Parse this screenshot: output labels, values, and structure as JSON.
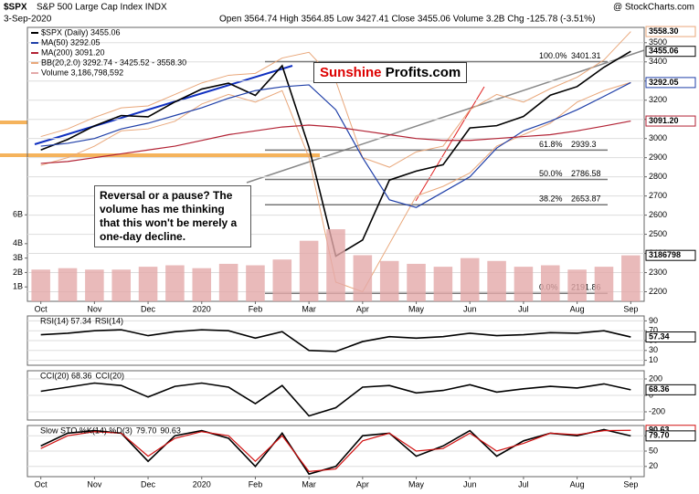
{
  "header": {
    "symbol": "$SPX",
    "name": "S&P 500 Large Cap Index INDX",
    "date": "3-Sep-2020",
    "quote": "Open 3564.74 High 3564.85 Low 3427.41 Close 3455.06 Volume 3.2B Chg -125.78 (-3.51%)",
    "source": "@ StockCharts.com"
  },
  "annotation": "Reversal or a pause? The volume has me thinking that this won't be merely a one-day decline.",
  "logo": [
    "Sunshine",
    "Profits.com"
  ],
  "chart_data": [
    {
      "type": "line",
      "categories": [
        "Oct",
        null,
        "Nov",
        null,
        "Dec",
        null,
        "2020",
        null,
        "Feb",
        null,
        "Mar",
        null,
        "Apr",
        null,
        "May",
        null,
        "Jun",
        null,
        "Jul",
        null,
        "Aug",
        null,
        "Sep"
      ],
      "series": [
        {
          "name": "$SPX (Daily) 3455.06",
          "color": "#000000",
          "values": [
            2940,
            2995,
            3066,
            3120,
            3113,
            3191,
            3258,
            3289,
            3225,
            3380,
            2954,
            2386,
            2470,
            2783,
            2830,
            2863,
            3055,
            3067,
            3115,
            3226,
            3271,
            3372,
            3455.06
          ]
        },
        {
          "name": "MA(50) 3292.05",
          "color": "#1f3fa8",
          "values": [
            2960,
            2975,
            3000,
            3050,
            3080,
            3120,
            3160,
            3210,
            3250,
            3270,
            3280,
            3150,
            2900,
            2680,
            2640,
            2720,
            2800,
            2950,
            3040,
            3090,
            3150,
            3220,
            3292.05
          ]
        },
        {
          "name": "MA(200) 3091.20",
          "color": "#b22234",
          "values": [
            2870,
            2880,
            2900,
            2920,
            2940,
            2960,
            2990,
            3020,
            3040,
            3060,
            3070,
            3060,
            3040,
            3020,
            3000,
            2990,
            2990,
            3000,
            3010,
            3020,
            3040,
            3065,
            3091.2
          ]
        },
        {
          "name": "Volume 3,186,798,592",
          "color": "#e3a9a9",
          "type": "bar",
          "axis": "y2",
          "values": [
            2.2,
            2.3,
            2.2,
            2.2,
            2.4,
            2.5,
            2.3,
            2.6,
            2.5,
            2.9,
            4.2,
            5.0,
            3.2,
            2.8,
            2.6,
            2.4,
            3.0,
            2.8,
            2.4,
            2.5,
            2.2,
            2.4,
            3.19
          ]
        }
      ],
      "bands": {
        "name": "BB(20,2.0) 3292.74 - 3425.52 - 3558.30",
        "color": "#e9a77a",
        "upper": [
          3010,
          3050,
          3110,
          3160,
          3170,
          3230,
          3290,
          3330,
          3340,
          3420,
          3450,
          3300,
          2900,
          2850,
          2930,
          2960,
          3150,
          3230,
          3190,
          3260,
          3320,
          3410,
          3558.3
        ],
        "lower": [
          2860,
          2900,
          2960,
          3040,
          3050,
          3090,
          3180,
          3230,
          3190,
          3250,
          2900,
          2250,
          2200,
          2450,
          2700,
          2750,
          2820,
          2960,
          3020,
          3080,
          3190,
          3250,
          3292.74
        ]
      },
      "fib_levels": [
        {
          "label": "100.0%",
          "value": 3401.31
        },
        {
          "label": "61.8%",
          "value": 2939.3
        },
        {
          "label": "50.0%",
          "value": 2786.58
        },
        {
          "label": "38.2%",
          "value": 2653.87
        },
        {
          "label": "0.0%",
          "value": 2191.86
        }
      ],
      "ylim": [
        2150,
        3580
      ],
      "yticks": [
        2200,
        2300,
        2400,
        2500,
        2600,
        2700,
        2800,
        2900,
        3000,
        3100,
        3200,
        3300,
        3400,
        3500
      ],
      "ymarkers": [
        {
          "value": 3558.3,
          "label": "3558.30",
          "color": "#e9a77a"
        },
        {
          "value": 3455.06,
          "label": "3455.06",
          "color": "#000000"
        },
        {
          "value": 3292.05,
          "label": "3292.05",
          "color": "#1f3fa8"
        },
        {
          "value": 3091.2,
          "label": "3091.20",
          "color": "#b22234"
        }
      ],
      "y2lim": [
        0,
        19
      ],
      "y2ticks": [
        {
          "value": 1,
          "label": "1B"
        },
        {
          "value": 2,
          "label": "2B"
        },
        {
          "value": 3,
          "label": "3B"
        },
        {
          "value": 4,
          "label": "4B"
        },
        {
          "value": 6,
          "label": "6B"
        }
      ],
      "y2markers": [
        {
          "value": 3.186798,
          "label": "3186798",
          "color": "#000000"
        }
      ],
      "grid": true
    },
    {
      "type": "line",
      "title": "RSI(14) 57.34",
      "series": [
        {
          "name": "RSI(14)",
          "color": "#000000",
          "values": [
            62,
            65,
            70,
            72,
            60,
            68,
            72,
            70,
            55,
            68,
            30,
            28,
            48,
            58,
            55,
            58,
            65,
            60,
            62,
            66,
            65,
            70,
            57.34
          ]
        }
      ],
      "ylim": [
        0,
        100
      ],
      "yticks": [
        10,
        30,
        50,
        70,
        90
      ],
      "ymarkers": [
        {
          "value": 57.34,
          "label": "57.34",
          "color": "#000000"
        }
      ],
      "grid": true
    },
    {
      "type": "line",
      "title": "CCI(20) 68.36",
      "series": [
        {
          "name": "CCI(20)",
          "color": "#000000",
          "values": [
            50,
            100,
            150,
            120,
            -20,
            110,
            150,
            100,
            -100,
            120,
            -250,
            -150,
            100,
            120,
            30,
            60,
            130,
            40,
            80,
            110,
            90,
            140,
            68.36
          ]
        }
      ],
      "ylim": [
        -300,
        300
      ],
      "yticks": [
        -200,
        0,
        200
      ],
      "ymarkers": [
        {
          "value": 68.36,
          "label": "68.36",
          "color": "#000000"
        }
      ],
      "grid": true
    },
    {
      "type": "line",
      "title": "Slow STO %K(14) %D(3)",
      "categories": [
        "Oct",
        null,
        "Nov",
        null,
        "Dec",
        null,
        "2020",
        null,
        "Feb",
        null,
        "Mar",
        null,
        "Apr",
        null,
        "May",
        null,
        "Jun",
        null,
        "Jul",
        null,
        "Aug",
        null,
        "Sep"
      ],
      "series": [
        {
          "name": "79.70",
          "color": "#000000",
          "values": [
            60,
            85,
            90,
            85,
            30,
            80,
            90,
            75,
            20,
            85,
            5,
            20,
            80,
            85,
            40,
            60,
            90,
            40,
            70,
            85,
            80,
            92,
            79.7
          ]
        },
        {
          "name": "90.63",
          "color": "#d01010",
          "values": [
            55,
            80,
            88,
            85,
            40,
            75,
            88,
            80,
            30,
            80,
            10,
            15,
            70,
            85,
            50,
            55,
            85,
            50,
            65,
            85,
            82,
            90,
            90.63
          ]
        }
      ],
      "ylim": [
        0,
        100
      ],
      "yticks": [
        20,
        50,
        80
      ],
      "ymarkers": [
        {
          "value": 90.63,
          "label": "90.63",
          "color": "#d01010"
        },
        {
          "value": 79.7,
          "label": "79.70",
          "color": "#000000"
        }
      ],
      "grid": true
    }
  ]
}
